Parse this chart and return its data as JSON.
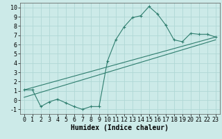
{
  "title": "",
  "xlabel": "Humidex (Indice chaleur)",
  "background_color": "#cceae8",
  "grid_color": "#b0d8d5",
  "line_color": "#2e7d6e",
  "xlim": [
    -0.5,
    23.5
  ],
  "ylim": [
    -1.5,
    10.5
  ],
  "xticks": [
    0,
    1,
    2,
    3,
    4,
    5,
    6,
    7,
    8,
    9,
    10,
    11,
    12,
    13,
    14,
    15,
    16,
    17,
    18,
    19,
    20,
    21,
    22,
    23
  ],
  "yticks": [
    -1,
    0,
    1,
    2,
    3,
    4,
    5,
    6,
    7,
    8,
    9,
    10
  ],
  "curve1_x": [
    0,
    1,
    2,
    3,
    4,
    5,
    6,
    7,
    8,
    9,
    10,
    11,
    12,
    13,
    14,
    15,
    16,
    17,
    18,
    19,
    20,
    21,
    22,
    23
  ],
  "curve1_y": [
    1.1,
    1.1,
    -0.7,
    -0.2,
    0.1,
    -0.3,
    -0.7,
    -1.0,
    -0.7,
    -0.7,
    4.2,
    6.5,
    7.9,
    8.9,
    9.1,
    10.1,
    9.3,
    8.1,
    6.5,
    6.3,
    7.2,
    7.1,
    7.1,
    6.8
  ],
  "curve2_x": [
    0,
    23
  ],
  "curve2_y": [
    1.1,
    6.8
  ],
  "curve3_x": [
    0,
    23
  ],
  "curve3_y": [
    0.3,
    6.5
  ],
  "fontsize_label": 7,
  "fontsize_tick": 6
}
